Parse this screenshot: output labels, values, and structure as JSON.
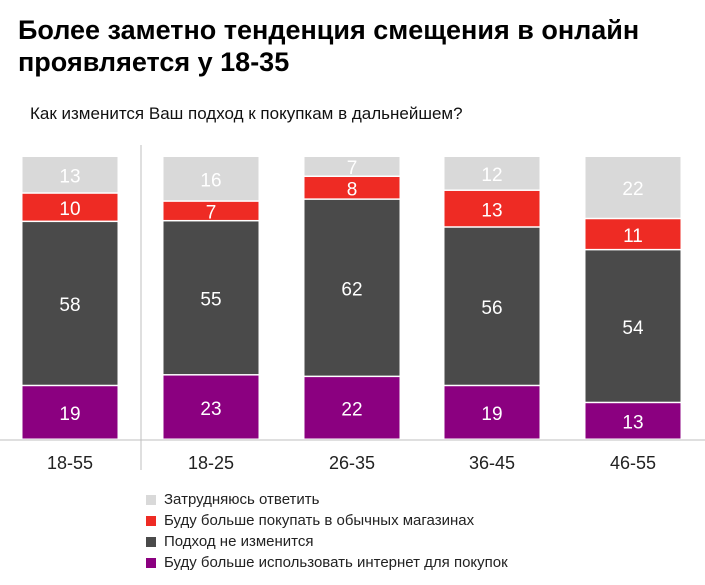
{
  "title": "Более заметно тенденция смещения в онлайн проявляется у 18-35",
  "subtitle": "Как изменится Ваш подход к покупкам в дальнейшем?",
  "chart_data": {
    "type": "bar",
    "stacked": true,
    "categories": [
      "18-55",
      "18-25",
      "26-35",
      "36-45",
      "46-55"
    ],
    "series": [
      {
        "name": "Буду больше использовать интернет для покупок",
        "color": "#8B0080",
        "values": [
          19,
          23,
          22,
          19,
          13
        ]
      },
      {
        "name": "Подход не изменится",
        "color": "#4A4A4A",
        "values": [
          58,
          55,
          62,
          56,
          54
        ]
      },
      {
        "name": "Буду больше покупать в обычных магазинах",
        "color": "#EE2B24",
        "values": [
          10,
          7,
          8,
          13,
          11
        ]
      },
      {
        "name": "Затрудняюсь ответить",
        "color": "#D9D9D9",
        "values": [
          13,
          16,
          7,
          12,
          22
        ]
      }
    ],
    "ylim": [
      0,
      100
    ],
    "grid": false,
    "legend_position": "bottom"
  }
}
